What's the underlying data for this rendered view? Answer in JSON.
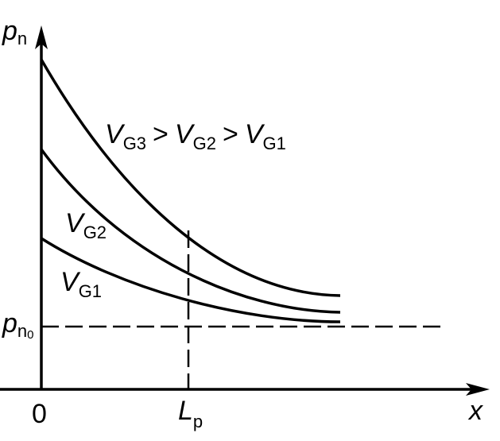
{
  "axes": {
    "y_label": {
      "main": "p",
      "sub": "n"
    },
    "x_label": "x",
    "origin": "0",
    "marker": {
      "main": "L",
      "sub": "p"
    },
    "baseline": {
      "main": "p",
      "sub": "n",
      "subsub": "0"
    }
  },
  "relation": {
    "terms": [
      {
        "main": "V",
        "sub": "G3"
      },
      {
        "main": "V",
        "sub": "G2"
      },
      {
        "main": "V",
        "sub": "G1"
      }
    ],
    "separators": [
      ">",
      ">"
    ]
  },
  "curves": [
    {
      "main": "V",
      "sub": "G1"
    },
    {
      "main": "V",
      "sub": "G2"
    },
    {
      "main": "V",
      "sub": "G3"
    }
  ]
}
